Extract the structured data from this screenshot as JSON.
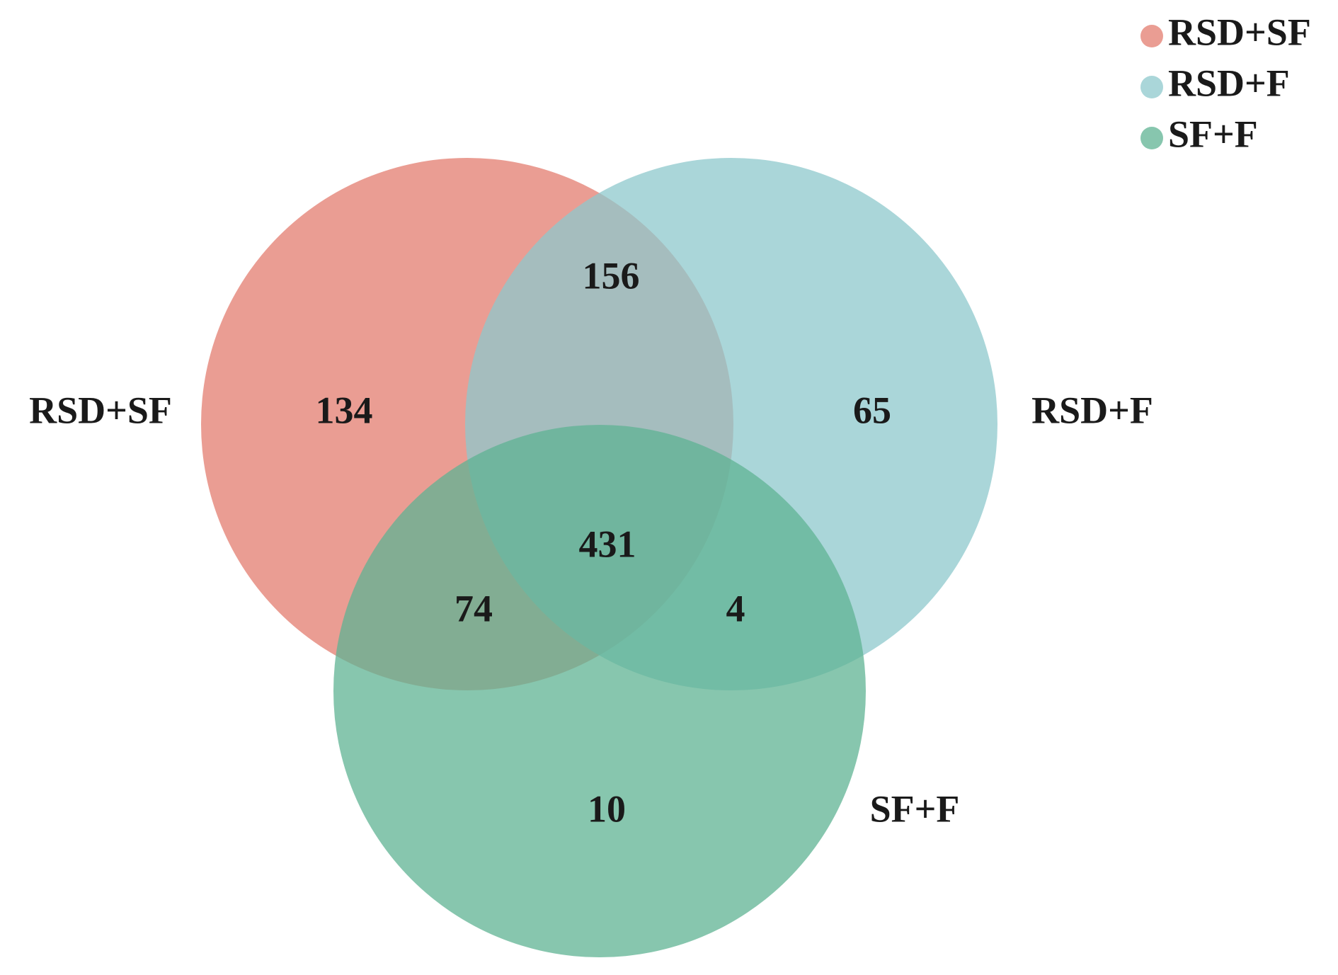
{
  "chart_data": {
    "type": "venn",
    "series": [
      {
        "name": "RSD+SF",
        "color": "#e37c6f"
      },
      {
        "name": "RSD+F",
        "color": "#8ec8cc"
      },
      {
        "name": "SF+F",
        "color": "#5fb393"
      }
    ],
    "categories": [
      "RSD+SF",
      "RSD+F",
      "SF+F",
      "RSD+SF & RSD+F",
      "RSD+SF & SF+F",
      "RSD+F & SF+F",
      "RSD+SF & RSD+F & SF+F"
    ],
    "values": [
      134,
      65,
      10,
      156,
      74,
      4,
      431
    ]
  }
}
